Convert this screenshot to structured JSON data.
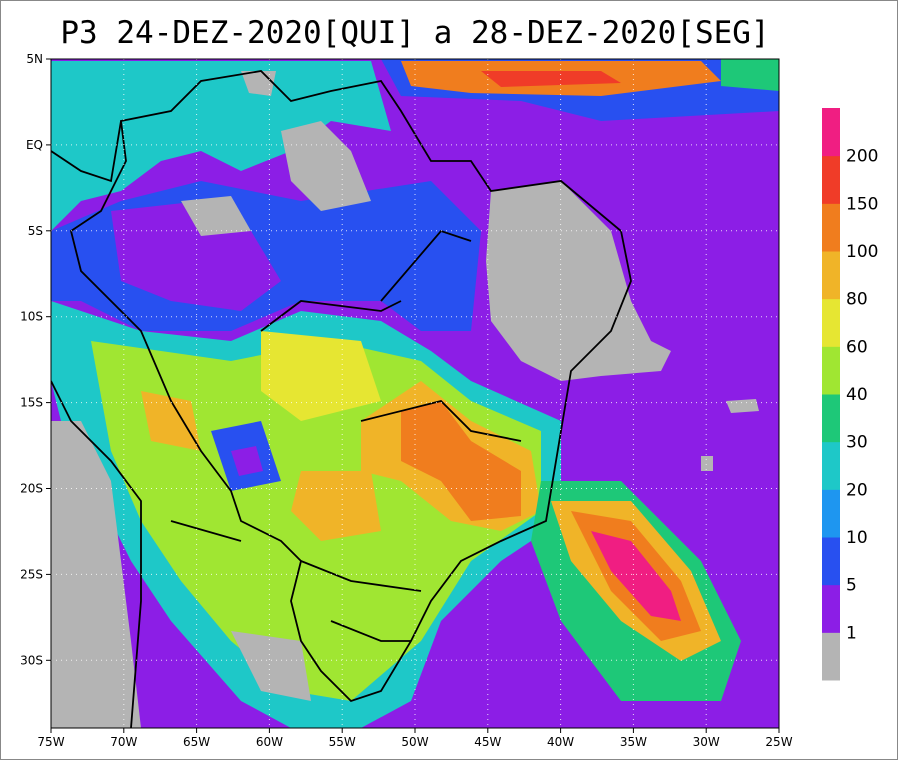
{
  "title": "P3 24-DEZ-2020[QUI] a 28-DEZ-2020[SEG]",
  "lat_labels": [
    "5N",
    "EQ",
    "5S",
    "10S",
    "15S",
    "20S",
    "25S",
    "30S"
  ],
  "lon_labels": [
    "75W",
    "70W",
    "65W",
    "60W",
    "55W",
    "50W",
    "45W",
    "40W",
    "35W",
    "30W",
    "25W"
  ],
  "colorbar": {
    "levels": [
      1,
      5,
      10,
      20,
      30,
      40,
      60,
      80,
      100,
      150,
      200
    ],
    "colors": [
      "#b4b4b4",
      "#8c1ee6",
      "#2850f0",
      "#1e96f0",
      "#1ec8c8",
      "#1ec878",
      "#a0e632",
      "#e6e632",
      "#f0b428",
      "#f07d1e",
      "#f03c28",
      "#f01e82"
    ]
  }
}
